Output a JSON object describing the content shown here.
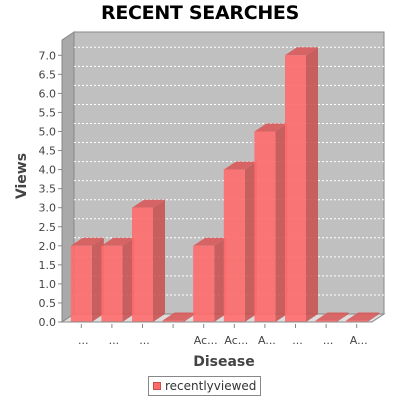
{
  "chart_data": {
    "type": "bar",
    "title": "RECENT SEARCHES",
    "xlabel": "Disease",
    "ylabel": "Views",
    "categories": [
      "...",
      "...",
      "...",
      "",
      "Ac...",
      "Ac...",
      "A...",
      "...",
      "...",
      "A..."
    ],
    "series": [
      {
        "name": "recentlyviewed",
        "color": "#ff6b6b",
        "values": [
          2,
          2,
          3,
          0,
          2,
          4,
          5,
          7,
          0,
          0
        ]
      }
    ],
    "ylim": [
      0,
      7.4
    ],
    "yticks": [
      "0.0",
      "0.5",
      "1.0",
      "1.5",
      "2.0",
      "2.5",
      "3.0",
      "3.5",
      "4.0",
      "4.5",
      "5.0",
      "5.5",
      "6.0",
      "6.5",
      "7.0"
    ],
    "grid": true,
    "legend_position": "bottom",
    "style": "3d",
    "plot_background": "#c0c0c0"
  }
}
